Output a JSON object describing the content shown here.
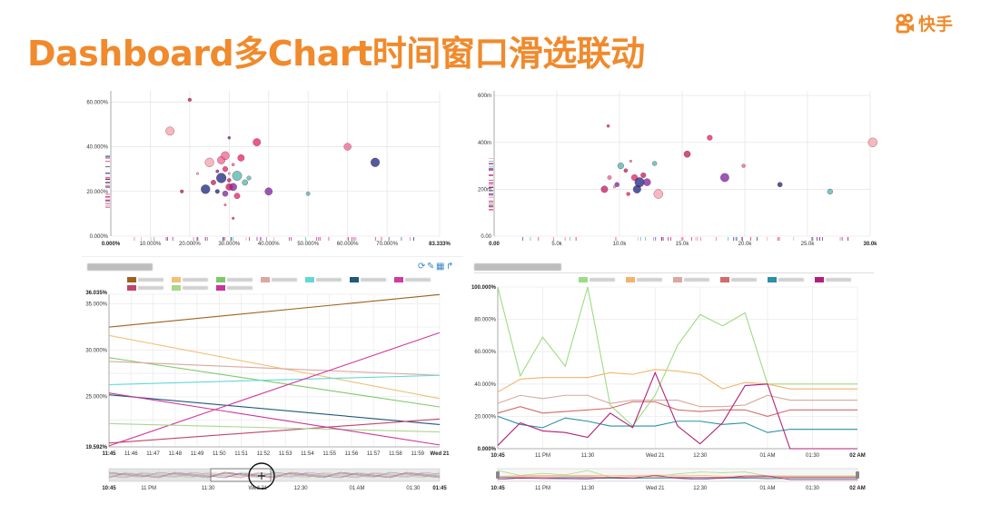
{
  "slide": {
    "title": "Dashboard多Chart时间窗口滑选联动",
    "logo_text": "快手",
    "accent_color": "#f08a2c"
  },
  "scatter_left": {
    "y_ticks": [
      "60.000%",
      "40.000%",
      "20.000%",
      "0.000%"
    ],
    "x_ticks": [
      "0.000%",
      "10.000%",
      "20.000%",
      "30.000%",
      "40.000%",
      "50.000%",
      "60.000%",
      "70.000%",
      "83.333%"
    ]
  },
  "scatter_right": {
    "y_ticks": [
      "600m",
      "400m",
      "200m",
      "0.00"
    ],
    "x_ticks": [
      "0.00",
      "5.0k",
      "10.0k",
      "15.0k",
      "20.0k",
      "25.0k",
      "30.0k"
    ]
  },
  "line_left": {
    "toolbar_icons": [
      "refresh-icon",
      "edit-icon",
      "table-icon",
      "share-icon"
    ],
    "y_ticks": [
      "36.035%",
      "35.000%",
      "30.000%",
      "25.000%",
      "19.592%"
    ],
    "x_ticks": [
      "11:45",
      "11:46",
      "11:47",
      "11:48",
      "11:49",
      "11:50",
      "11:51",
      "11:52",
      "11:53",
      "11:54",
      "11:55",
      "11:56",
      "11:57",
      "11:58",
      "11:59",
      "Wed 21"
    ],
    "brush_ticks": [
      "10:45",
      "11 PM",
      "11:30",
      "Wed 21",
      "12:30",
      "01 AM",
      "01:30",
      "01:45"
    ]
  },
  "line_right": {
    "y_ticks": [
      "100.000%",
      "80.000%",
      "60.000%",
      "40.000%",
      "20.000%",
      "0.000%"
    ],
    "x_ticks": [
      "10:45",
      "11 PM",
      "11:30",
      "Wed 21",
      "12:30",
      "01 AM",
      "01:30",
      "02 AM"
    ],
    "brush_ticks": [
      "10:45",
      "11 PM",
      "11:30",
      "Wed 21",
      "12:30",
      "01 AM",
      "01:30",
      "02 AM"
    ]
  },
  "chart_data": [
    {
      "type": "scatter",
      "title": "",
      "xlim": [
        0,
        83.333
      ],
      "ylim": [
        0,
        65
      ],
      "grid": true,
      "x": [
        30,
        29,
        31,
        28,
        27,
        32,
        30,
        26,
        33,
        29,
        31,
        28,
        34,
        25,
        30,
        32,
        27,
        29,
        24,
        35,
        22,
        18,
        37,
        40,
        60,
        67,
        50,
        15,
        20,
        31,
        30,
        29
      ],
      "y": [
        25,
        30,
        22,
        34,
        20,
        27,
        28,
        24,
        35,
        19,
        32,
        26,
        24,
        33,
        22,
        18,
        29,
        36,
        21,
        26,
        28,
        20,
        42,
        20,
        40,
        33,
        19,
        47,
        61,
        8,
        44,
        14
      ],
      "series": [
        {
          "name": "",
          "colors": [
            "#c2185b",
            "#e91e63",
            "#7b1fa2",
            "#f06292",
            "#1a237e",
            "#4db6ac",
            "#f4a0a8"
          ]
        }
      ]
    },
    {
      "type": "scatter",
      "title": "",
      "xlim": [
        0,
        30000
      ],
      "ylim": [
        0,
        620
      ],
      "grid": true,
      "x": [
        10500,
        11200,
        9800,
        10900,
        11600,
        10100,
        9600,
        11900,
        10700,
        12200,
        9200,
        11400,
        12800,
        13100,
        8800,
        17200,
        18400,
        19900,
        22800,
        26800,
        30200,
        15400,
        9100
      ],
      "y": [
        280,
        250,
        220,
        320,
        230,
        300,
        210,
        260,
        180,
        230,
        250,
        200,
        310,
        180,
        200,
        420,
        250,
        300,
        220,
        190,
        400,
        350,
        470
      ],
      "series": [
        {
          "name": "",
          "colors": [
            "#c2185b",
            "#e91e63",
            "#7b1fa2",
            "#f06292",
            "#1a237e",
            "#4db6ac",
            "#f4a0a8"
          ]
        }
      ]
    },
    {
      "type": "line",
      "title": "",
      "ylim": [
        19.592,
        36.035
      ],
      "categories": [
        "11:45",
        "11:46",
        "11:47",
        "11:48",
        "11:49",
        "11:50",
        "11:51",
        "11:52",
        "11:53",
        "11:54",
        "11:55",
        "11:56",
        "11:57",
        "11:58",
        "11:59",
        "Wed 21"
      ],
      "series": [
        {
          "name": "",
          "color": "#a0611e",
          "start": 32.5,
          "end": 36.0
        },
        {
          "name": "",
          "color": "#f2c078",
          "start": 31.6,
          "end": 24.8
        },
        {
          "name": "",
          "color": "#7dc96a",
          "start": 29.2,
          "end": 23.9
        },
        {
          "name": "",
          "color": "#d9a8a0",
          "start": 28.8,
          "end": 27.3
        },
        {
          "name": "",
          "color": "#62d9d6",
          "start": 26.3,
          "end": 27.3
        },
        {
          "name": "",
          "color": "#1f5a7a",
          "start": 25.2,
          "end": 22.0
        },
        {
          "name": "",
          "color": "#d23aa0",
          "start": 19.7,
          "end": 31.9
        },
        {
          "name": "",
          "color": "#c0456a",
          "start": 20.0,
          "end": 22.6
        },
        {
          "name": "",
          "color": "#a8d88a",
          "start": 22.1,
          "end": 21.2
        },
        {
          "name": "",
          "color": "#c9359b",
          "start": 25.4,
          "end": 19.8
        }
      ]
    },
    {
      "type": "line",
      "title": "",
      "ylim": [
        0,
        100
      ],
      "x": [
        "10:45",
        "",
        "11 PM",
        "",
        "11:30",
        "",
        "",
        "Wed 21",
        "",
        "12:30",
        "",
        "",
        "01 AM",
        "",
        "01:30",
        "",
        "02 AM"
      ],
      "series": [
        {
          "name": "",
          "color": "#9ddc82",
          "values": [
            100,
            45,
            69,
            51,
            100,
            27,
            14,
            33,
            64,
            83,
            76,
            84,
            40,
            40,
            40,
            40,
            40
          ]
        },
        {
          "name": "",
          "color": "#f2b46a",
          "values": [
            35,
            43,
            44,
            44,
            44,
            47,
            46,
            49,
            48,
            46,
            37,
            41,
            40,
            37,
            37,
            37,
            37
          ]
        },
        {
          "name": "",
          "color": "#d9a8a0",
          "values": [
            28,
            33,
            31,
            33,
            33,
            28,
            30,
            30,
            30,
            26,
            26,
            27,
            33,
            30,
            30,
            30,
            30
          ]
        },
        {
          "name": "",
          "color": "#d46a6a",
          "values": [
            22,
            26,
            22,
            23,
            24,
            25,
            29,
            29,
            24,
            23,
            24,
            24,
            20,
            24,
            24,
            24,
            24
          ]
        },
        {
          "name": "",
          "color": "#2a8fa8",
          "values": [
            20,
            15,
            13,
            19,
            17,
            14,
            14,
            14,
            17,
            17,
            15,
            16,
            10,
            12,
            12,
            12,
            12
          ]
        },
        {
          "name": "",
          "color": "#b0207a",
          "values": [
            2,
            16,
            11,
            10,
            7,
            22,
            13,
            47,
            14,
            3,
            16,
            39,
            40,
            0,
            0,
            0,
            0
          ]
        }
      ]
    }
  ]
}
